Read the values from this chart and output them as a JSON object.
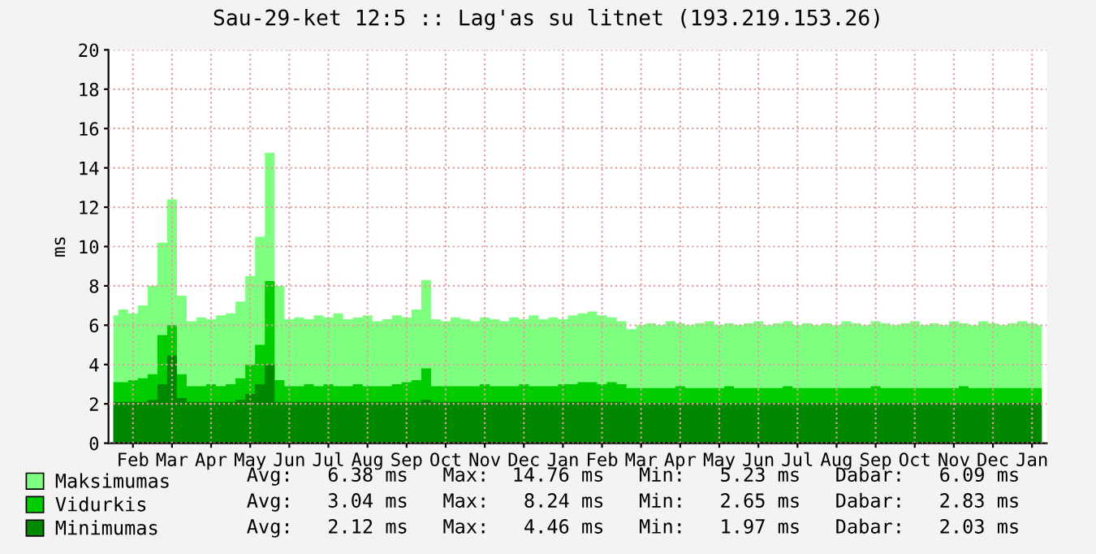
{
  "chart_data": {
    "type": "area",
    "title": "Sau-29-ket 12:5 :: Lag'as su litnet (193.219.153.26)",
    "ylabel": "ms",
    "categories": [
      null,
      null,
      "Feb",
      null,
      null,
      null,
      "Mar",
      null,
      null,
      null,
      "Apr",
      null,
      null,
      null,
      "May",
      null,
      null,
      null,
      "Jun",
      null,
      null,
      null,
      "Jul",
      null,
      null,
      null,
      "Aug",
      null,
      null,
      null,
      "Sep",
      null,
      null,
      null,
      "Oct",
      null,
      null,
      null,
      "Nov",
      null,
      null,
      null,
      "Dec",
      null,
      null,
      null,
      "Jan",
      null,
      null,
      null,
      "Feb",
      null,
      null,
      null,
      "Mar",
      null,
      null,
      null,
      "Apr",
      null,
      null,
      null,
      "May",
      null,
      null,
      null,
      "Jun",
      null,
      null,
      null,
      "Jul",
      null,
      null,
      null,
      "Aug",
      null,
      null,
      null,
      "Sep",
      null,
      null,
      null,
      "Oct",
      null,
      null,
      null,
      "Nov",
      null,
      null,
      null,
      "Dec",
      null,
      null,
      null,
      "Jan",
      null
    ],
    "series": [
      {
        "name": "Maksimumas",
        "color": "#7fff7f",
        "values": [
          6.5,
          6.8,
          6.6,
          7.0,
          8.0,
          10.2,
          12.4,
          7.5,
          6.2,
          6.4,
          6.3,
          6.5,
          6.6,
          7.2,
          8.5,
          10.5,
          14.76,
          8.0,
          6.3,
          6.4,
          6.3,
          6.5,
          6.4,
          6.6,
          6.3,
          6.4,
          6.5,
          6.2,
          6.3,
          6.5,
          6.4,
          6.8,
          8.3,
          6.3,
          6.2,
          6.4,
          6.3,
          6.2,
          6.4,
          6.3,
          6.2,
          6.4,
          6.3,
          6.5,
          6.3,
          6.4,
          6.3,
          6.5,
          6.6,
          6.7,
          6.5,
          6.4,
          6.2,
          5.8,
          6.0,
          6.1,
          6.0,
          6.2,
          6.1,
          6.0,
          6.1,
          6.2,
          6.0,
          6.1,
          6.0,
          6.1,
          6.2,
          6.0,
          6.1,
          6.2,
          6.0,
          6.1,
          6.0,
          6.1,
          6.0,
          6.2,
          6.1,
          6.0,
          6.2,
          6.1,
          6.0,
          6.1,
          6.2,
          6.0,
          6.1,
          6.0,
          6.2,
          6.1,
          6.0,
          6.2,
          6.1,
          6.0,
          6.1,
          6.2,
          6.1,
          6.0
        ]
      },
      {
        "name": "Vidurkis",
        "color": "#00cc00",
        "values": [
          3.1,
          3.1,
          3.2,
          3.3,
          3.5,
          5.5,
          6.0,
          3.5,
          2.9,
          2.9,
          3.0,
          2.9,
          3.0,
          3.3,
          4.0,
          5.0,
          8.24,
          3.2,
          2.9,
          2.9,
          3.0,
          2.9,
          3.0,
          2.9,
          2.9,
          3.0,
          2.9,
          2.9,
          2.9,
          3.0,
          3.1,
          3.2,
          3.8,
          2.9,
          2.9,
          2.9,
          2.9,
          2.9,
          3.0,
          2.9,
          2.9,
          2.9,
          3.0,
          2.9,
          2.9,
          2.9,
          3.0,
          3.0,
          3.1,
          3.1,
          3.0,
          3.1,
          3.0,
          2.8,
          2.8,
          2.8,
          2.8,
          2.8,
          2.9,
          2.8,
          2.8,
          2.8,
          2.8,
          2.9,
          2.8,
          2.8,
          2.8,
          2.8,
          2.8,
          2.9,
          2.8,
          2.8,
          2.8,
          2.8,
          2.8,
          2.8,
          2.8,
          2.8,
          2.9,
          2.8,
          2.8,
          2.8,
          2.8,
          2.8,
          2.8,
          2.8,
          2.8,
          2.9,
          2.8,
          2.8,
          2.8,
          2.8,
          2.8,
          2.8,
          2.8,
          2.8
        ]
      },
      {
        "name": "Minimumas",
        "color": "#008800",
        "values": [
          2.1,
          2.1,
          2.1,
          2.1,
          2.2,
          3.0,
          4.46,
          2.3,
          2.1,
          2.1,
          2.1,
          2.1,
          2.1,
          2.2,
          2.5,
          3.0,
          4.0,
          2.1,
          2.1,
          2.1,
          2.1,
          2.1,
          2.1,
          2.1,
          2.1,
          2.1,
          2.1,
          2.1,
          2.1,
          2.1,
          2.1,
          2.1,
          2.2,
          2.1,
          2.1,
          2.1,
          2.1,
          2.1,
          2.1,
          2.1,
          2.1,
          2.1,
          2.1,
          2.1,
          2.1,
          2.1,
          2.1,
          2.1,
          2.1,
          2.1,
          2.1,
          2.1,
          2.1,
          2.05,
          2.05,
          2.05,
          2.05,
          2.05,
          2.05,
          2.05,
          2.05,
          2.05,
          2.05,
          2.05,
          2.05,
          2.05,
          2.05,
          2.05,
          2.05,
          2.05,
          2.05,
          2.05,
          2.05,
          2.05,
          2.05,
          2.05,
          2.05,
          2.05,
          2.05,
          2.05,
          2.05,
          2.05,
          2.05,
          2.05,
          2.05,
          2.05,
          2.05,
          2.05,
          2.05,
          2.05,
          2.05,
          2.05,
          2.05,
          2.05,
          2.05,
          2.05
        ]
      }
    ],
    "ylim": [
      0,
      20
    ],
    "yticks": [
      0,
      2,
      4,
      6,
      8,
      10,
      12,
      14,
      16,
      18,
      20
    ],
    "grid": true,
    "legend": "bottom",
    "annotations": [
      "Avg:   6.38 ms   Max:  14.76 ms   Min:   5.23 ms   Dabar:   6.09 ms",
      "Avg:   3.04 ms   Max:   8.24 ms   Min:   2.65 ms   Dabar:   2.83 ms",
      "Avg:   2.12 ms   Max:   4.46 ms   Min:   1.97 ms   Dabar:   2.03 ms"
    ]
  }
}
